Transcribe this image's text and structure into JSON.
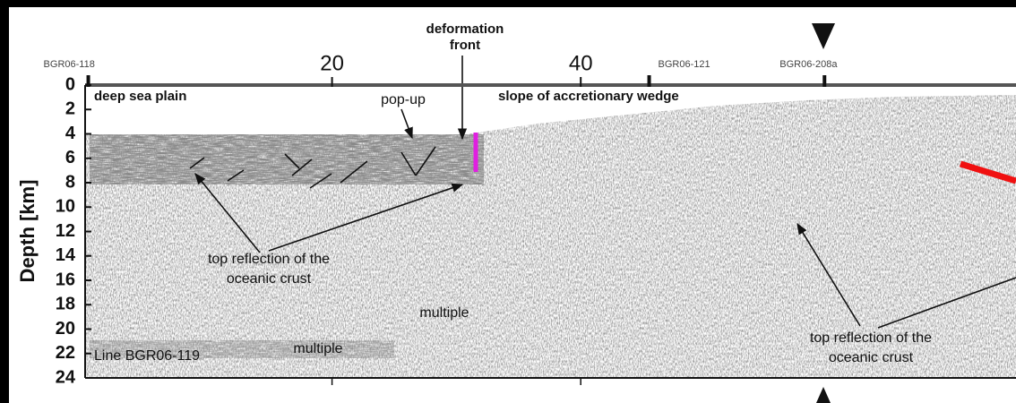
{
  "chart_data": {
    "type": "seismic-section",
    "ylabel": "Depth [km]",
    "xlim": [
      0,
      75
    ],
    "ylim": [
      0,
      24
    ],
    "yticks": [
      0,
      2,
      4,
      6,
      8,
      10,
      12,
      14,
      16,
      18,
      20,
      22,
      24
    ],
    "xticks": [
      20,
      40
    ],
    "stations": [
      {
        "name": "BGR06-118",
        "x": 0.4
      },
      {
        "name": "BGR06-121",
        "x": 45.5
      },
      {
        "name": "BGR06-208a",
        "x": 59.6
      }
    ],
    "line_label": "Line BGR06-119",
    "annotations": [
      {
        "lines": [
          "deep sea plain"
        ]
      },
      {
        "lines": [
          "slope of accretionary wedge"
        ]
      },
      {
        "lines": [
          "deformation",
          "front"
        ]
      },
      {
        "lines": [
          "pop-up"
        ]
      },
      {
        "lines": [
          "top reflection of the",
          "oceanic crust"
        ]
      },
      {
        "lines": [
          "top reflection of the",
          "oceanic crust"
        ]
      },
      {
        "lines": [
          "multiple"
        ]
      },
      {
        "lines": [
          "multiple"
        ]
      }
    ]
  }
}
